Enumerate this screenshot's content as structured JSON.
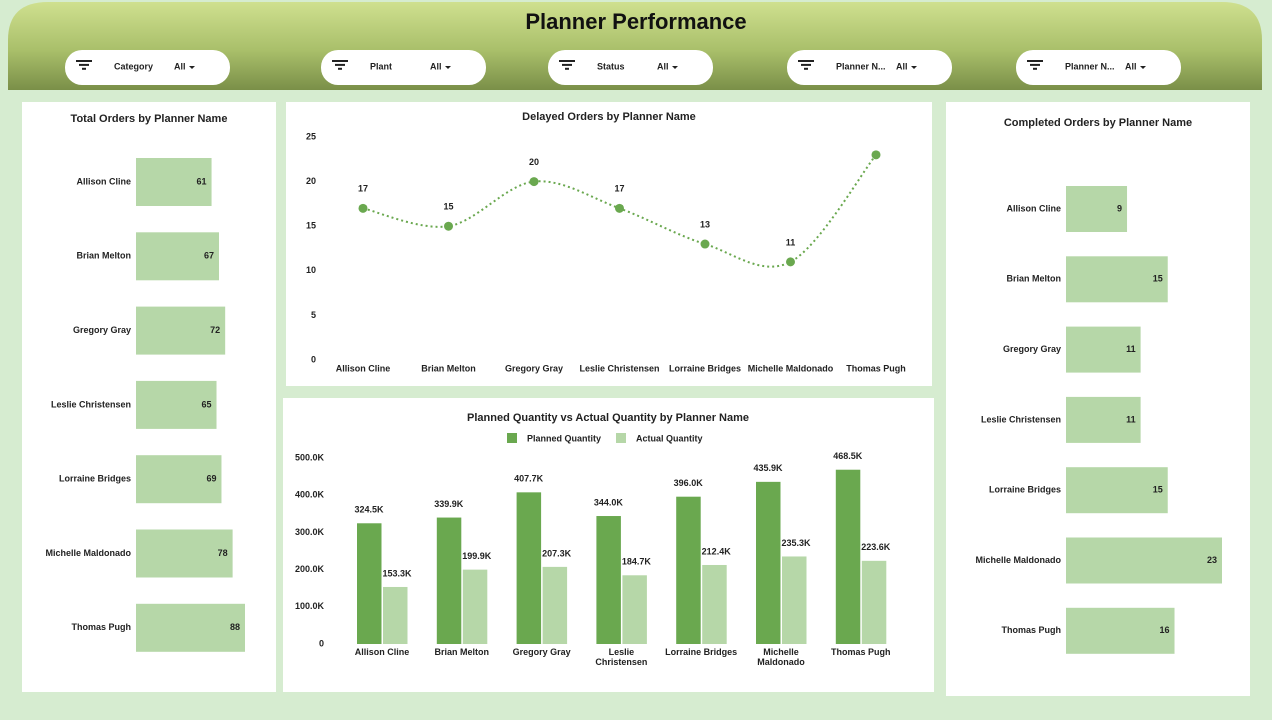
{
  "header": {
    "title": "Planner Performance",
    "filters": [
      {
        "label": "Category",
        "value": "All"
      },
      {
        "label": "Plant",
        "value": "All"
      },
      {
        "label": "Status",
        "value": "All"
      },
      {
        "label": "Planner N...",
        "value": "All"
      },
      {
        "label": "Planner N...",
        "value": "All"
      }
    ]
  },
  "chart_data": [
    {
      "type": "hbar",
      "title": "Total Orders by Planner Name",
      "categories": [
        "Allison Cline",
        "Brian Melton",
        "Gregory Gray",
        "Leslie Christensen",
        "Lorraine Bridges",
        "Michelle Maldonado",
        "Thomas Pugh"
      ],
      "values": [
        61,
        67,
        72,
        65,
        69,
        78,
        88
      ],
      "color": "#b6d7a8"
    },
    {
      "type": "line",
      "title": "Delayed Orders by Planner Name",
      "categories": [
        "Allison Cline",
        "Brian Melton",
        "Gregory Gray",
        "Leslie Christensen",
        "Lorraine Bridges",
        "Michelle Maldonado",
        "Thomas Pugh"
      ],
      "values": [
        17,
        15,
        20,
        17,
        13,
        11,
        23
      ],
      "value_labels": [
        "17",
        "15",
        "20",
        "17",
        "13",
        "11",
        null
      ],
      "color": "#6aa84f",
      "ylim": [
        0,
        25
      ],
      "yticks": [
        0,
        5,
        10,
        15,
        20,
        25
      ]
    },
    {
      "type": "grouped_bar",
      "title": "Planned Quantity vs Actual Quantity by Planner Name",
      "categories": [
        "Allison Cline",
        "Brian Melton",
        "Gregory Gray",
        "Leslie Christensen",
        "Lorraine Bridges",
        "Michelle Maldonado",
        "Thomas Pugh"
      ],
      "series": [
        {
          "name": "Planned Quantity",
          "color": "#6aa84f",
          "values": [
            324500,
            339900,
            407700,
            344000,
            396000,
            435900,
            468500
          ],
          "value_labels": [
            "324.5K",
            "339.9K",
            "407.7K",
            "344.0K",
            "396.0K",
            "435.9K",
            "468.5K"
          ]
        },
        {
          "name": "Actual Quantity",
          "color": "#b6d7a8",
          "values": [
            153300,
            199900,
            207300,
            184700,
            212400,
            235300,
            223600
          ],
          "value_labels": [
            "153.3K",
            "199.9K",
            "207.3K",
            "184.7K",
            "212.4K",
            "235.3K",
            "223.6K"
          ]
        }
      ],
      "ylim": [
        0,
        500000
      ],
      "yticks": [
        0,
        {
          "value": 100000,
          "label": "100.0K"
        },
        {
          "value": 200000,
          "label": "200.0K"
        },
        {
          "value": 300000,
          "label": "300.0K"
        },
        {
          "value": 400000,
          "label": "400.0K"
        },
        {
          "value": 500000,
          "label": "500.0K"
        }
      ],
      "legend": "top"
    },
    {
      "type": "hbar",
      "title": "Completed Orders by Planner Name",
      "categories": [
        "Allison Cline",
        "Brian Melton",
        "Gregory Gray",
        "Leslie Christensen",
        "Lorraine Bridges",
        "Michelle Maldonado",
        "Thomas Pugh"
      ],
      "values": [
        9,
        15,
        11,
        11,
        15,
        23,
        16
      ],
      "color": "#b6d7a8"
    }
  ]
}
